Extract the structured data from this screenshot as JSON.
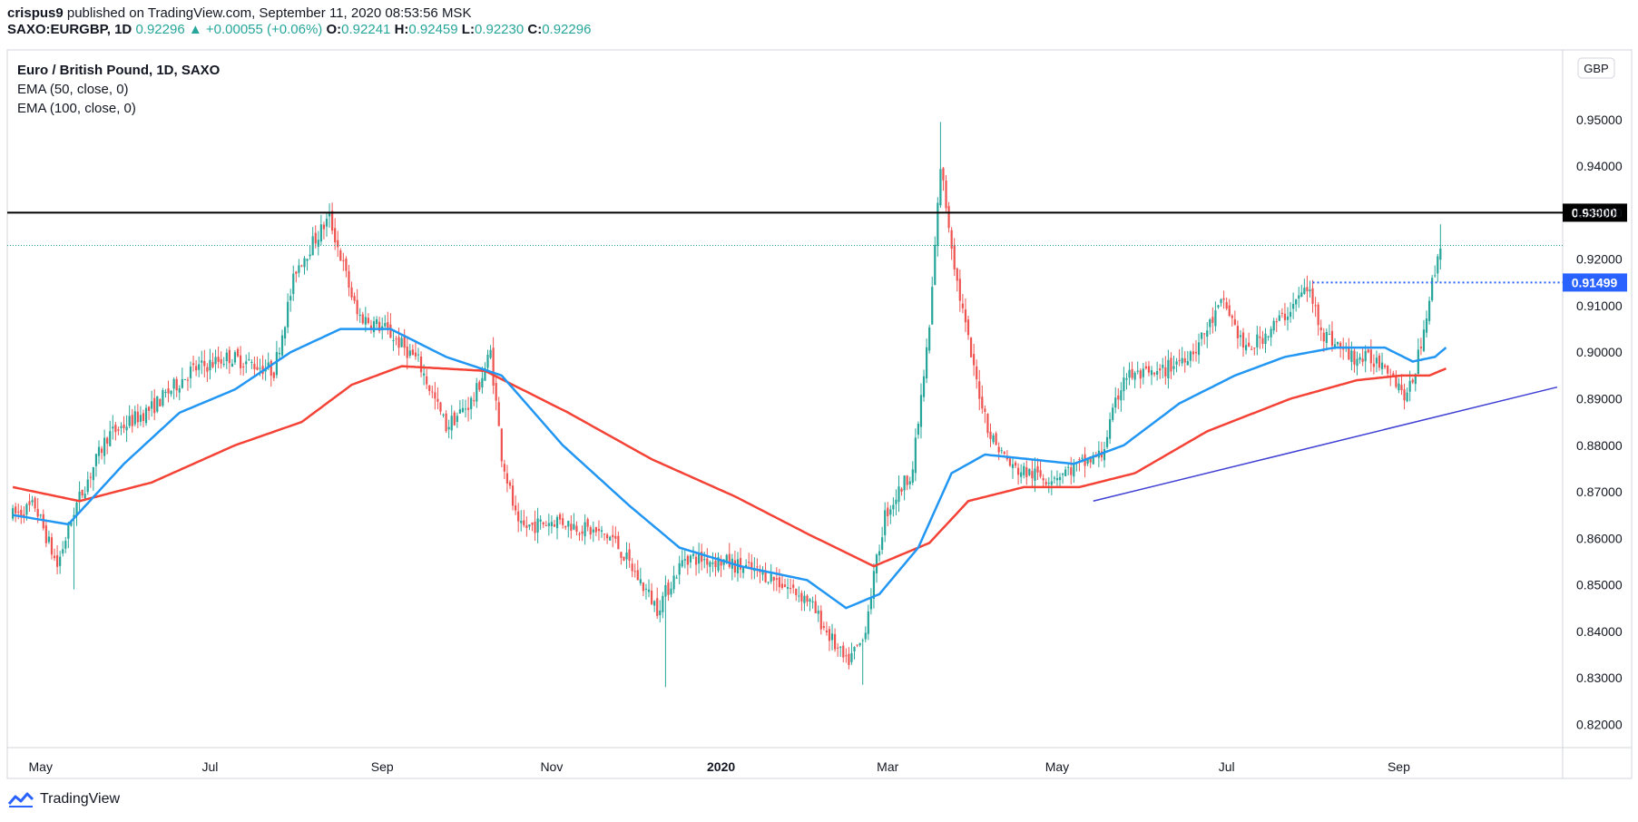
{
  "header": {
    "author": "crispus9",
    "published_text": "published on TradingView.com, September 11, 2020 08:53:56 MSK",
    "symbol": "SAXO:EURGBP, 1D",
    "last": "0.92296",
    "change": "+0.00055 (+0.06%)",
    "o_label": "O:",
    "o_value": "0.92241",
    "h_label": "H:",
    "h_value": "0.92459",
    "l_label": "L:",
    "l_value": "0.92230",
    "c_label": "C:",
    "c_value": "0.92296"
  },
  "legend": {
    "title": "Euro / British Pound, 1D, SAXO",
    "ema50": "EMA (50, close, 0)",
    "ema100": "EMA (100, close, 0)"
  },
  "currency_label": "GBP",
  "footer_brand": "TradingView",
  "colors": {
    "up": "#26a69a",
    "down": "#ef5350",
    "ema50": "#2196f3",
    "ema100": "#f44336",
    "trendline": "#3f3fd4",
    "resistance": "#000000",
    "level2": "#2962ff"
  },
  "chart_data": {
    "type": "candlestick",
    "title": "Euro / British Pound, 1D, SAXO",
    "ylim": [
      0.815,
      0.965
    ],
    "y_ticks": [
      "0.82000",
      "0.83000",
      "0.84000",
      "0.85000",
      "0.86000",
      "0.87000",
      "0.88000",
      "0.89000",
      "0.90000",
      "0.91000",
      "0.92000",
      "0.93000",
      "0.94000",
      "0.95000"
    ],
    "x_labels": [
      {
        "label": "May",
        "day": 10
      },
      {
        "label": "Jul",
        "day": 71
      },
      {
        "label": "Sep",
        "day": 133
      },
      {
        "label": "Nov",
        "day": 194
      },
      {
        "label": "2020",
        "day": 255,
        "bold": true
      },
      {
        "label": "Mar",
        "day": 315
      },
      {
        "label": "May",
        "day": 376
      },
      {
        "label": "Jul",
        "day": 437
      },
      {
        "label": "Sep",
        "day": 499
      }
    ],
    "x_range_days": [
      -2,
      558
    ],
    "price_anchors": [
      [
        0,
        0.865
      ],
      [
        8,
        0.867
      ],
      [
        16,
        0.854
      ],
      [
        22,
        0.866
      ],
      [
        34,
        0.882
      ],
      [
        50,
        0.888
      ],
      [
        64,
        0.896
      ],
      [
        78,
        0.899
      ],
      [
        94,
        0.896
      ],
      [
        102,
        0.918
      ],
      [
        114,
        0.929
      ],
      [
        124,
        0.908
      ],
      [
        134,
        0.905
      ],
      [
        146,
        0.898
      ],
      [
        156,
        0.884
      ],
      [
        166,
        0.89
      ],
      [
        172,
        0.9
      ],
      [
        176,
        0.878
      ],
      [
        182,
        0.862
      ],
      [
        196,
        0.864
      ],
      [
        216,
        0.86
      ],
      [
        232,
        0.845
      ],
      [
        242,
        0.856
      ],
      [
        256,
        0.855
      ],
      [
        272,
        0.852
      ],
      [
        286,
        0.847
      ],
      [
        300,
        0.833
      ],
      [
        306,
        0.838
      ],
      [
        314,
        0.865
      ],
      [
        324,
        0.875
      ],
      [
        330,
        0.905
      ],
      [
        334,
        0.94
      ],
      [
        340,
        0.915
      ],
      [
        346,
        0.896
      ],
      [
        352,
        0.882
      ],
      [
        360,
        0.875
      ],
      [
        372,
        0.873
      ],
      [
        382,
        0.875
      ],
      [
        392,
        0.878
      ],
      [
        400,
        0.895
      ],
      [
        412,
        0.895
      ],
      [
        426,
        0.901
      ],
      [
        436,
        0.911
      ],
      [
        444,
        0.9
      ],
      [
        458,
        0.908
      ],
      [
        466,
        0.914
      ],
      [
        472,
        0.904
      ],
      [
        482,
        0.899
      ],
      [
        494,
        0.898
      ],
      [
        502,
        0.89
      ],
      [
        506,
        0.899
      ],
      [
        510,
        0.912
      ],
      [
        514,
        0.9229
      ]
    ],
    "ema50_anchors": [
      [
        0,
        0.865
      ],
      [
        20,
        0.863
      ],
      [
        40,
        0.876
      ],
      [
        60,
        0.887
      ],
      [
        80,
        0.892
      ],
      [
        100,
        0.9
      ],
      [
        118,
        0.905
      ],
      [
        136,
        0.905
      ],
      [
        156,
        0.899
      ],
      [
        176,
        0.895
      ],
      [
        198,
        0.88
      ],
      [
        222,
        0.867
      ],
      [
        240,
        0.858
      ],
      [
        262,
        0.854
      ],
      [
        286,
        0.851
      ],
      [
        300,
        0.845
      ],
      [
        312,
        0.848
      ],
      [
        326,
        0.858
      ],
      [
        338,
        0.874
      ],
      [
        350,
        0.878
      ],
      [
        366,
        0.877
      ],
      [
        382,
        0.876
      ],
      [
        400,
        0.88
      ],
      [
        420,
        0.889
      ],
      [
        440,
        0.895
      ],
      [
        458,
        0.899
      ],
      [
        476,
        0.901
      ],
      [
        494,
        0.901
      ],
      [
        504,
        0.898
      ],
      [
        512,
        0.899
      ],
      [
        516,
        0.901
      ]
    ],
    "ema100_anchors": [
      [
        0,
        0.871
      ],
      [
        24,
        0.868
      ],
      [
        50,
        0.872
      ],
      [
        80,
        0.88
      ],
      [
        104,
        0.885
      ],
      [
        122,
        0.893
      ],
      [
        140,
        0.897
      ],
      [
        170,
        0.896
      ],
      [
        200,
        0.887
      ],
      [
        230,
        0.877
      ],
      [
        260,
        0.869
      ],
      [
        286,
        0.861
      ],
      [
        310,
        0.854
      ],
      [
        330,
        0.859
      ],
      [
        344,
        0.868
      ],
      [
        364,
        0.871
      ],
      [
        384,
        0.871
      ],
      [
        404,
        0.874
      ],
      [
        430,
        0.883
      ],
      [
        460,
        0.89
      ],
      [
        484,
        0.894
      ],
      [
        500,
        0.895
      ],
      [
        510,
        0.895
      ],
      [
        516,
        0.8965
      ]
    ],
    "spikes": [
      [
        334,
        0.9495
      ],
      [
        114,
        0.932
      ],
      [
        514,
        0.9275
      ],
      [
        306,
        0.8285
      ],
      [
        235,
        0.828
      ],
      [
        22,
        0.849
      ]
    ],
    "resistance_level": 0.93,
    "resistance_label": "0.93000",
    "current_price": 0.92296,
    "level2": 0.91499,
    "level2_label": "0.91499",
    "level2_start_day": 468,
    "trendline": {
      "from": [
        389,
        0.868
      ],
      "to": [
        556,
        0.8925
      ]
    }
  }
}
